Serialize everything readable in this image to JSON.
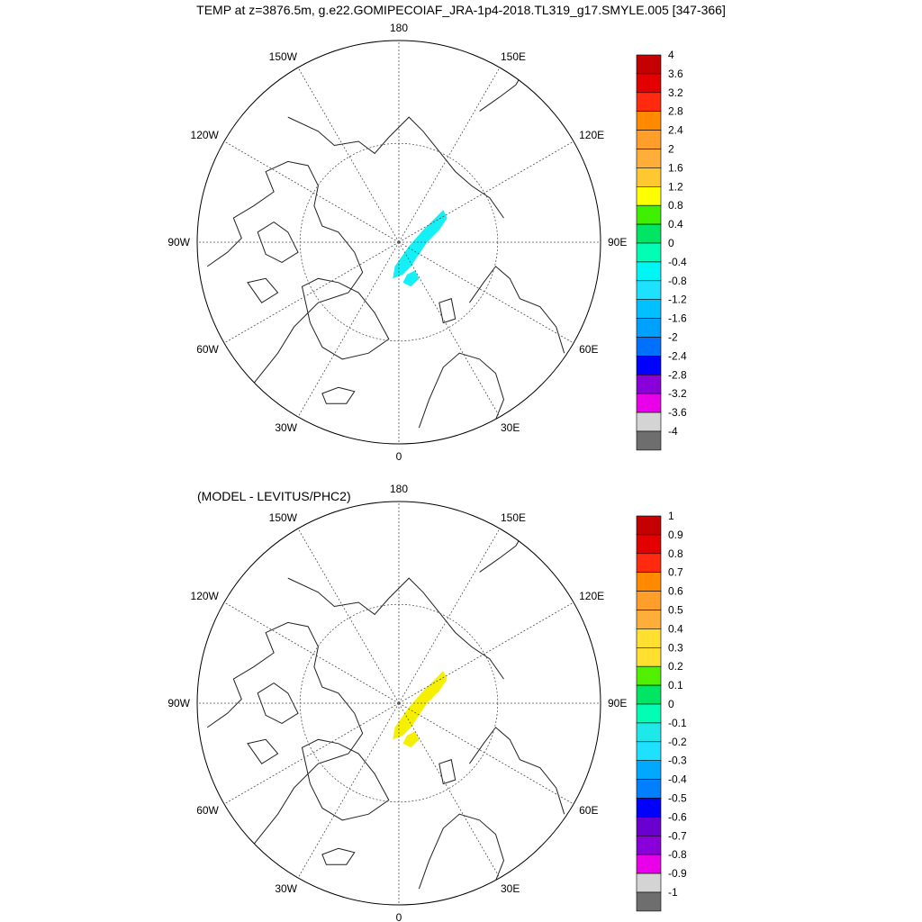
{
  "title": "TEMP at z=3876.5m, g.e22.GOMIPECOIAF_JRA-1p4-2018.TL319_g17.SMYLE.005 [347-366]",
  "panels": [
    {
      "subtitle": "",
      "lon_labels": {
        "top": "180",
        "bottom": "0",
        "left": "90W",
        "right": "90E",
        "ul1": "150W",
        "ul2": "120W",
        "ur1": "150E",
        "ur2": "120E",
        "ll1": "60W",
        "ll2": "30W",
        "lr1": "60E",
        "lr2": "30E"
      },
      "colorbar": {
        "labels": [
          "4",
          "3.6",
          "3.2",
          "2.8",
          "2.4",
          "2",
          "1.6",
          "1.2",
          "0.8",
          "0.4",
          "0",
          "-0.4",
          "-0.8",
          "-1.2",
          "-1.6",
          "-2",
          "-2.4",
          "-2.8",
          "-3.2",
          "-3.6",
          "-4"
        ],
        "colors": [
          "#c40000",
          "#e40000",
          "#ff2a0f",
          "#ff8a00",
          "#ff9e2a",
          "#ffae3a",
          "#ffc830",
          "#ffff00",
          "#3ef000",
          "#00e664",
          "#00ffb4",
          "#00f5f5",
          "#1ee0ff",
          "#00c0ff",
          "#00a0ff",
          "#0070ff",
          "#0000ff",
          "#8a00d8",
          "#e800e8",
          "#d4d4d4",
          "#6e6e6e"
        ]
      },
      "field_color": "#14f0f5"
    },
    {
      "subtitle": "(MODEL - LEVITUS/PHC2)",
      "lon_labels": {
        "top": "180",
        "bottom": "0",
        "left": "90W",
        "right": "90E",
        "ul1": "150W",
        "ul2": "120W",
        "ur1": "150E",
        "ur2": "120E",
        "ll1": "60W",
        "ll2": "30W",
        "lr1": "60E",
        "lr2": "30E"
      },
      "colorbar": {
        "labels": [
          "1",
          "0.9",
          "0.8",
          "0.7",
          "0.6",
          "0.5",
          "0.4",
          "0.3",
          "0.2",
          "0.1",
          "0",
          "-0.1",
          "-0.2",
          "-0.3",
          "-0.4",
          "-0.5",
          "-0.6",
          "-0.7",
          "-0.8",
          "-0.9",
          "-1"
        ],
        "colors": [
          "#c40000",
          "#e40000",
          "#ff2a0f",
          "#ff8a00",
          "#ff9e2a",
          "#ffae3a",
          "#ffe030",
          "#ffe030",
          "#50f000",
          "#00e664",
          "#00ffb4",
          "#1ee8e8",
          "#1ee0ff",
          "#00a8ff",
          "#0080ff",
          "#0000ff",
          "#6a00d0",
          "#8a00d8",
          "#e800e8",
          "#d4d4d4",
          "#6e6e6e"
        ]
      },
      "field_color": "#f5f000"
    }
  ]
}
